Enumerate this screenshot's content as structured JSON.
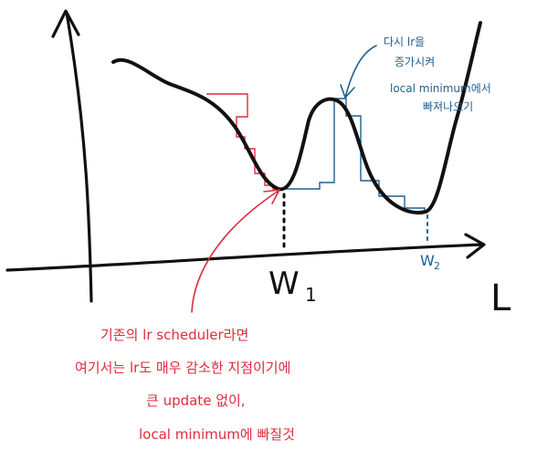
{
  "labels": {
    "w1": "W",
    "w1_sub": "1",
    "w2": "W",
    "w2_sub": "2",
    "loss": "L"
  },
  "blue_note": [
    "다시 lr을",
    "증가시켜",
    "local minimum에서",
    "빠져나오기"
  ],
  "red_note": [
    "기존의 lr scheduler라면",
    "여기서는 lr도 매우 감소한 지점이기에",
    "큰 update 없이,",
    "local minimum에 빠질것"
  ],
  "colors": {
    "curve": "#111111",
    "red_annotation": "#e02a3c",
    "blue_annotation": "#1f5f8f",
    "background": "#ffffff"
  },
  "icons": {
    "axis_arrow": "arrow-head-icon"
  }
}
